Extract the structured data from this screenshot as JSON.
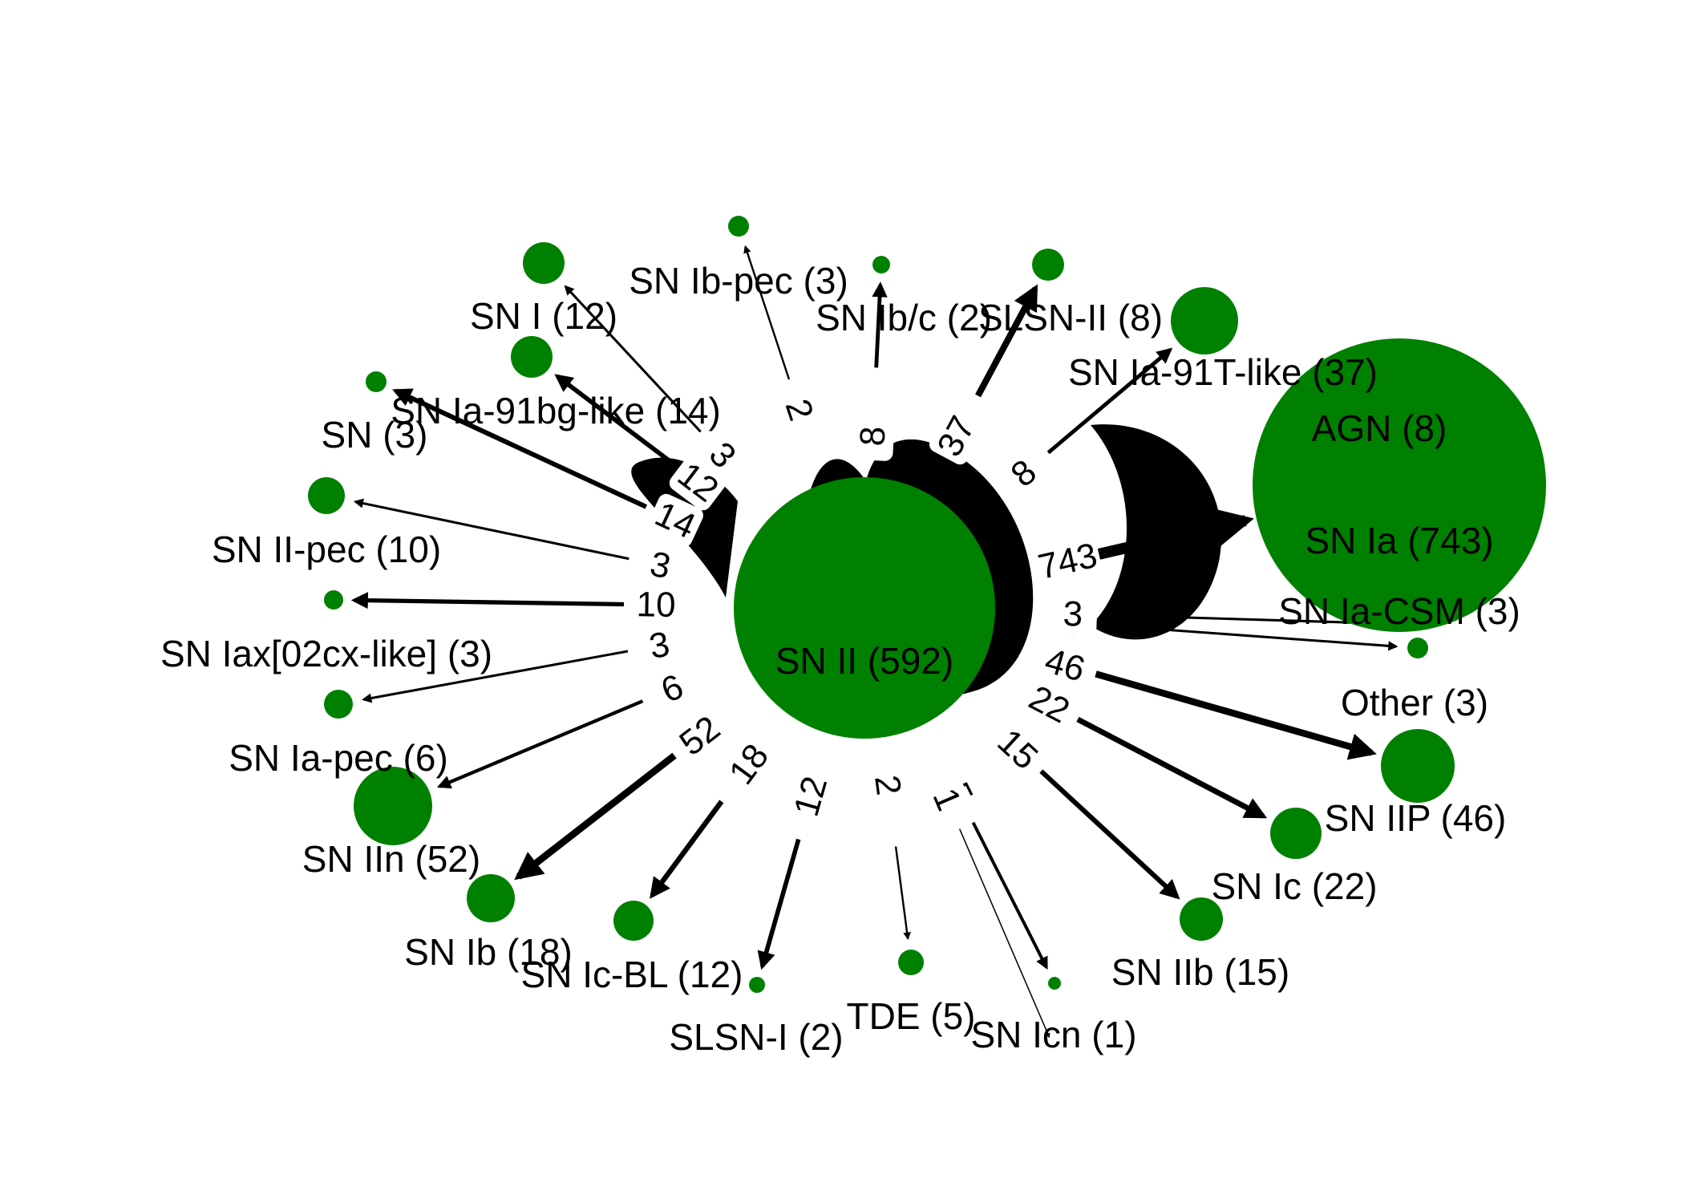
{
  "colors": {
    "node": "#008000",
    "edge": "#000000",
    "label_box": "#ffffff",
    "background": "#ffffff"
  },
  "nodes": [
    {
      "id": "SN II",
      "label": "SN II (592)",
      "count": 592
    },
    {
      "id": "SN Ia",
      "label": "SN Ia (743)",
      "count": 743
    },
    {
      "id": "AGN",
      "label": "AGN (8)",
      "count": 8
    },
    {
      "id": "SN Ia-91T-like",
      "label": "SN Ia-91T-like (37)",
      "count": 37
    },
    {
      "id": "SLSN-II",
      "label": "SLSN-II (8)",
      "count": 8
    },
    {
      "id": "SN Ib/c",
      "label": "SN Ib/c (2)",
      "count": 2
    },
    {
      "id": "SN Ib-pec",
      "label": "SN Ib-pec (3)",
      "count": 3
    },
    {
      "id": "SN I",
      "label": "SN I (12)",
      "count": 12
    },
    {
      "id": "SN Ia-91bg-like",
      "label": "SN Ia-91bg-like (14)",
      "count": 14
    },
    {
      "id": "SN",
      "label": "SN (3)",
      "count": 3
    },
    {
      "id": "SN II-pec",
      "label": "SN II-pec (10)",
      "count": 10
    },
    {
      "id": "SN Iax[02cx-like]",
      "label": "SN Iax[02cx-like] (3)",
      "count": 3
    },
    {
      "id": "SN Ia-pec",
      "label": "SN Ia-pec (6)",
      "count": 6
    },
    {
      "id": "SN IIn",
      "label": "SN IIn (52)",
      "count": 52
    },
    {
      "id": "SN Ib",
      "label": "SN Ib (18)",
      "count": 18
    },
    {
      "id": "SN Ic-BL",
      "label": "SN Ic-BL (12)",
      "count": 12
    },
    {
      "id": "SLSN-I",
      "label": "SLSN-I (2)",
      "count": 2
    },
    {
      "id": "TDE",
      "label": "TDE (5)",
      "count": 5
    },
    {
      "id": "SN Icn",
      "label": "SN Icn (1)",
      "count": 1
    },
    {
      "id": "SN IIb",
      "label": "SN IIb (15)",
      "count": 15
    },
    {
      "id": "SN Ic",
      "label": "SN Ic (22)",
      "count": 22
    },
    {
      "id": "SN IIP",
      "label": "SN IIP (46)",
      "count": 46
    },
    {
      "id": "Other",
      "label": "Other (3)",
      "count": 3
    },
    {
      "id": "SN Ia-CSM",
      "label": "SN Ia-CSM (3)",
      "count": 3
    }
  ],
  "edges": [
    {
      "source": "SN II",
      "target": "SN Ia",
      "label": "743",
      "weight": 743
    },
    {
      "source": "SN II",
      "target": "SN Ia-91T-like",
      "label": "37",
      "weight": 37
    },
    {
      "source": "SN II",
      "target": "AGN",
      "label": "8",
      "weight": 8
    },
    {
      "source": "SN II",
      "target": "SLSN-II",
      "label": "8",
      "weight": 8
    },
    {
      "source": "SN II",
      "target": "SN Ib/c",
      "label": "2",
      "weight": 2
    },
    {
      "source": "SN II",
      "target": "SN Ib-pec",
      "label": "3",
      "weight": 3
    },
    {
      "source": "SN II",
      "target": "SN I",
      "label": "12",
      "weight": 12
    },
    {
      "source": "SN II",
      "target": "SN Ia-91bg-like",
      "label": "14",
      "weight": 14
    },
    {
      "source": "SN II",
      "target": "SN",
      "label": "3",
      "weight": 3
    },
    {
      "source": "SN II",
      "target": "SN II-pec",
      "label": "10",
      "weight": 10
    },
    {
      "source": "SN II",
      "target": "SN Iax[02cx-like]",
      "label": "3",
      "weight": 3
    },
    {
      "source": "SN II",
      "target": "SN Ia-pec",
      "label": "6",
      "weight": 6
    },
    {
      "source": "SN II",
      "target": "SN IIn",
      "label": "52",
      "weight": 52
    },
    {
      "source": "SN II",
      "target": "SN Ib",
      "label": "18",
      "weight": 18
    },
    {
      "source": "SN II",
      "target": "SN Ic-BL",
      "label": "12",
      "weight": 12
    },
    {
      "source": "SN II",
      "target": "SLSN-I",
      "label": "2",
      "weight": 2
    },
    {
      "source": "SN II",
      "target": "TDE",
      "label": "5",
      "weight": 5
    },
    {
      "source": "SN II",
      "target": "SN Icn",
      "label": "1",
      "weight": 1
    },
    {
      "source": "SN II",
      "target": "SN IIb",
      "label": "15",
      "weight": 15
    },
    {
      "source": "SN II",
      "target": "SN Ic",
      "label": "22",
      "weight": 22
    },
    {
      "source": "SN II",
      "target": "SN IIP",
      "label": "46",
      "weight": 46
    },
    {
      "source": "SN II",
      "target": "Other",
      "label": "3",
      "weight": 3
    },
    {
      "source": "SN II",
      "target": "SN Ia-CSM",
      "label": "3",
      "weight": 3
    }
  ]
}
